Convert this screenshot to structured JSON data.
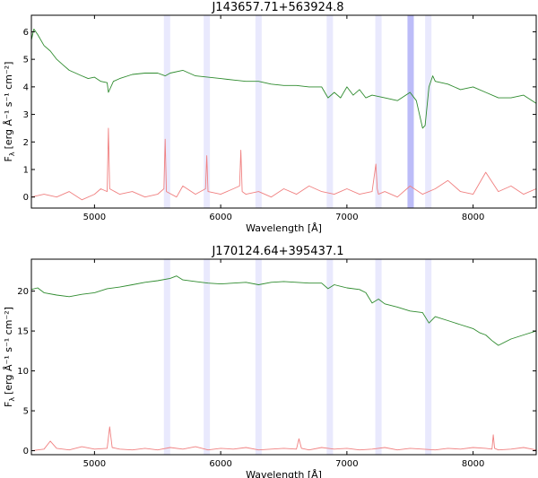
{
  "chart_data": [
    {
      "type": "line",
      "title": "J143657.71+563924.8",
      "xlabel": "Wavelength [Å]",
      "ylabel": "F",
      "ylabel_sub": "λ",
      "ylabel_unit": "[erg Å⁻¹ s⁻¹ cm⁻²]",
      "xlim": [
        4500,
        8500
      ],
      "ylim": [
        -0.4,
        6.6
      ],
      "xticks": [
        5000,
        6000,
        7000,
        8000
      ],
      "xtick_labels": [
        "5000",
        "6000",
        "7000",
        "8000"
      ],
      "yticks": [
        0,
        1,
        2,
        3,
        4,
        5,
        6
      ],
      "ytick_labels": [
        "0",
        "1",
        "2",
        "3",
        "4",
        "5",
        "6"
      ],
      "bands": [
        {
          "x0": 5550,
          "x1": 5600,
          "alpha": 0.15
        },
        {
          "x0": 5865,
          "x1": 5915,
          "alpha": 0.15
        },
        {
          "x0": 6275,
          "x1": 6325,
          "alpha": 0.15
        },
        {
          "x0": 6840,
          "x1": 6890,
          "alpha": 0.15
        },
        {
          "x0": 7225,
          "x1": 7275,
          "alpha": 0.15
        },
        {
          "x0": 7480,
          "x1": 7530,
          "alpha": 0.45
        },
        {
          "x0": 7620,
          "x1": 7670,
          "alpha": 0.15
        }
      ],
      "series": [
        {
          "color": "#2e8b2e",
          "x": [
            4500,
            4520,
            4550,
            4600,
            4650,
            4700,
            4750,
            4800,
            4850,
            4900,
            4950,
            5000,
            5050,
            5100,
            5110,
            5150,
            5200,
            5300,
            5400,
            5500,
            5560,
            5600,
            5700,
            5800,
            5900,
            6000,
            6100,
            6200,
            6300,
            6400,
            6500,
            6600,
            6700,
            6800,
            6850,
            6900,
            6950,
            7000,
            7050,
            7100,
            7150,
            7200,
            7300,
            7400,
            7500,
            7550,
            7580,
            7600,
            7620,
            7650,
            7680,
            7700,
            7800,
            7900,
            8000,
            8100,
            8200,
            8300,
            8400,
            8500
          ],
          "y": [
            5.7,
            6.1,
            5.9,
            5.5,
            5.3,
            5.0,
            4.8,
            4.6,
            4.5,
            4.4,
            4.3,
            4.35,
            4.2,
            4.15,
            3.8,
            4.2,
            4.3,
            4.45,
            4.5,
            4.5,
            4.4,
            4.5,
            4.6,
            4.4,
            4.35,
            4.3,
            4.25,
            4.2,
            4.2,
            4.1,
            4.05,
            4.05,
            4.0,
            4.0,
            3.6,
            3.8,
            3.6,
            4.0,
            3.7,
            3.9,
            3.6,
            3.7,
            3.6,
            3.5,
            3.8,
            3.5,
            2.9,
            2.5,
            2.6,
            4.0,
            4.4,
            4.2,
            4.1,
            3.9,
            4.0,
            3.8,
            3.6,
            3.6,
            3.7,
            3.4
          ]
        },
        {
          "color": "#f08080",
          "x": [
            4500,
            4600,
            4700,
            4800,
            4900,
            5000,
            5050,
            5100,
            5110,
            5120,
            5200,
            5300,
            5400,
            5500,
            5550,
            5560,
            5570,
            5650,
            5700,
            5800,
            5880,
            5890,
            5900,
            6000,
            6100,
            6150,
            6160,
            6170,
            6200,
            6300,
            6400,
            6500,
            6600,
            6700,
            6800,
            6900,
            7000,
            7100,
            7200,
            7230,
            7240,
            7250,
            7300,
            7400,
            7500,
            7600,
            7700,
            7800,
            7900,
            8000,
            8100,
            8200,
            8300,
            8400,
            8500
          ],
          "y": [
            0.0,
            0.1,
            0.0,
            0.2,
            -0.1,
            0.1,
            0.3,
            0.2,
            2.5,
            0.3,
            0.1,
            0.2,
            0.0,
            0.1,
            0.3,
            2.1,
            0.2,
            0.0,
            0.4,
            0.1,
            0.3,
            1.5,
            0.2,
            0.1,
            0.3,
            0.4,
            1.7,
            0.2,
            0.1,
            0.2,
            0.0,
            0.3,
            0.1,
            0.4,
            0.2,
            0.1,
            0.3,
            0.1,
            0.2,
            1.2,
            0.3,
            0.1,
            0.2,
            0.0,
            0.4,
            0.1,
            0.3,
            0.6,
            0.2,
            0.1,
            0.9,
            0.2,
            0.4,
            0.1,
            0.3
          ]
        }
      ]
    },
    {
      "type": "line",
      "title": "J170124.64+395437.1",
      "xlabel": "Wavelength [Å]",
      "ylabel": "F",
      "ylabel_sub": "λ",
      "ylabel_unit": "[erg Å⁻¹ s⁻¹ cm⁻²]",
      "xlim": [
        4500,
        8500
      ],
      "ylim": [
        -0.5,
        24.0
      ],
      "xticks": [
        5000,
        6000,
        7000,
        8000
      ],
      "xtick_labels": [
        "5000",
        "6000",
        "7000",
        "8000"
      ],
      "yticks": [
        0,
        5,
        10,
        15,
        20
      ],
      "ytick_labels": [
        "0",
        "5",
        "10",
        "15",
        "20"
      ],
      "bands": [
        {
          "x0": 5550,
          "x1": 5600,
          "alpha": 0.15
        },
        {
          "x0": 5865,
          "x1": 5915,
          "alpha": 0.15
        },
        {
          "x0": 6275,
          "x1": 6325,
          "alpha": 0.15
        },
        {
          "x0": 6840,
          "x1": 6890,
          "alpha": 0.15
        },
        {
          "x0": 7225,
          "x1": 7275,
          "alpha": 0.15
        },
        {
          "x0": 7620,
          "x1": 7670,
          "alpha": 0.15
        }
      ],
      "series": [
        {
          "color": "#2e8b2e",
          "x": [
            4500,
            4550,
            4600,
            4700,
            4800,
            4900,
            5000,
            5100,
            5200,
            5300,
            5400,
            5500,
            5600,
            5650,
            5700,
            5800,
            5900,
            6000,
            6100,
            6200,
            6300,
            6400,
            6500,
            6600,
            6700,
            6800,
            6850,
            6900,
            7000,
            7100,
            7150,
            7200,
            7250,
            7300,
            7400,
            7500,
            7600,
            7650,
            7700,
            7800,
            7900,
            8000,
            8050,
            8100,
            8150,
            8200,
            8300,
            8400,
            8500
          ],
          "y": [
            20.2,
            20.4,
            19.8,
            19.5,
            19.3,
            19.6,
            19.8,
            20.3,
            20.5,
            20.8,
            21.1,
            21.3,
            21.6,
            21.9,
            21.4,
            21.2,
            21.0,
            20.9,
            21.0,
            21.1,
            20.8,
            21.1,
            21.2,
            21.1,
            21.0,
            21.0,
            20.3,
            20.8,
            20.4,
            20.2,
            19.8,
            18.5,
            19.0,
            18.4,
            18.0,
            17.5,
            17.3,
            16.0,
            16.8,
            16.3,
            15.8,
            15.3,
            14.8,
            14.5,
            13.8,
            13.2,
            14.0,
            14.5,
            15.0
          ]
        },
        {
          "color": "#f08080",
          "x": [
            4500,
            4600,
            4650,
            4700,
            4800,
            4900,
            5000,
            5100,
            5120,
            5140,
            5200,
            5300,
            5400,
            5500,
            5600,
            5700,
            5800,
            5900,
            6000,
            6100,
            6200,
            6300,
            6400,
            6500,
            6600,
            6620,
            6640,
            6700,
            6800,
            6900,
            7000,
            7100,
            7200,
            7300,
            7400,
            7500,
            7600,
            7700,
            7800,
            7900,
            8000,
            8100,
            8150,
            8160,
            8170,
            8200,
            8300,
            8400,
            8500
          ],
          "y": [
            0.0,
            0.2,
            1.2,
            0.3,
            0.1,
            0.5,
            0.2,
            0.3,
            3.0,
            0.4,
            0.2,
            0.1,
            0.3,
            0.1,
            0.4,
            0.2,
            0.5,
            0.1,
            0.3,
            0.2,
            0.4,
            0.1,
            0.2,
            0.3,
            0.2,
            1.5,
            0.3,
            0.1,
            0.4,
            0.2,
            0.3,
            0.1,
            0.2,
            0.4,
            0.1,
            0.3,
            0.2,
            0.1,
            0.3,
            0.2,
            0.4,
            0.3,
            0.2,
            2.0,
            0.3,
            0.1,
            0.2,
            0.4,
            0.1
          ]
        }
      ]
    }
  ]
}
